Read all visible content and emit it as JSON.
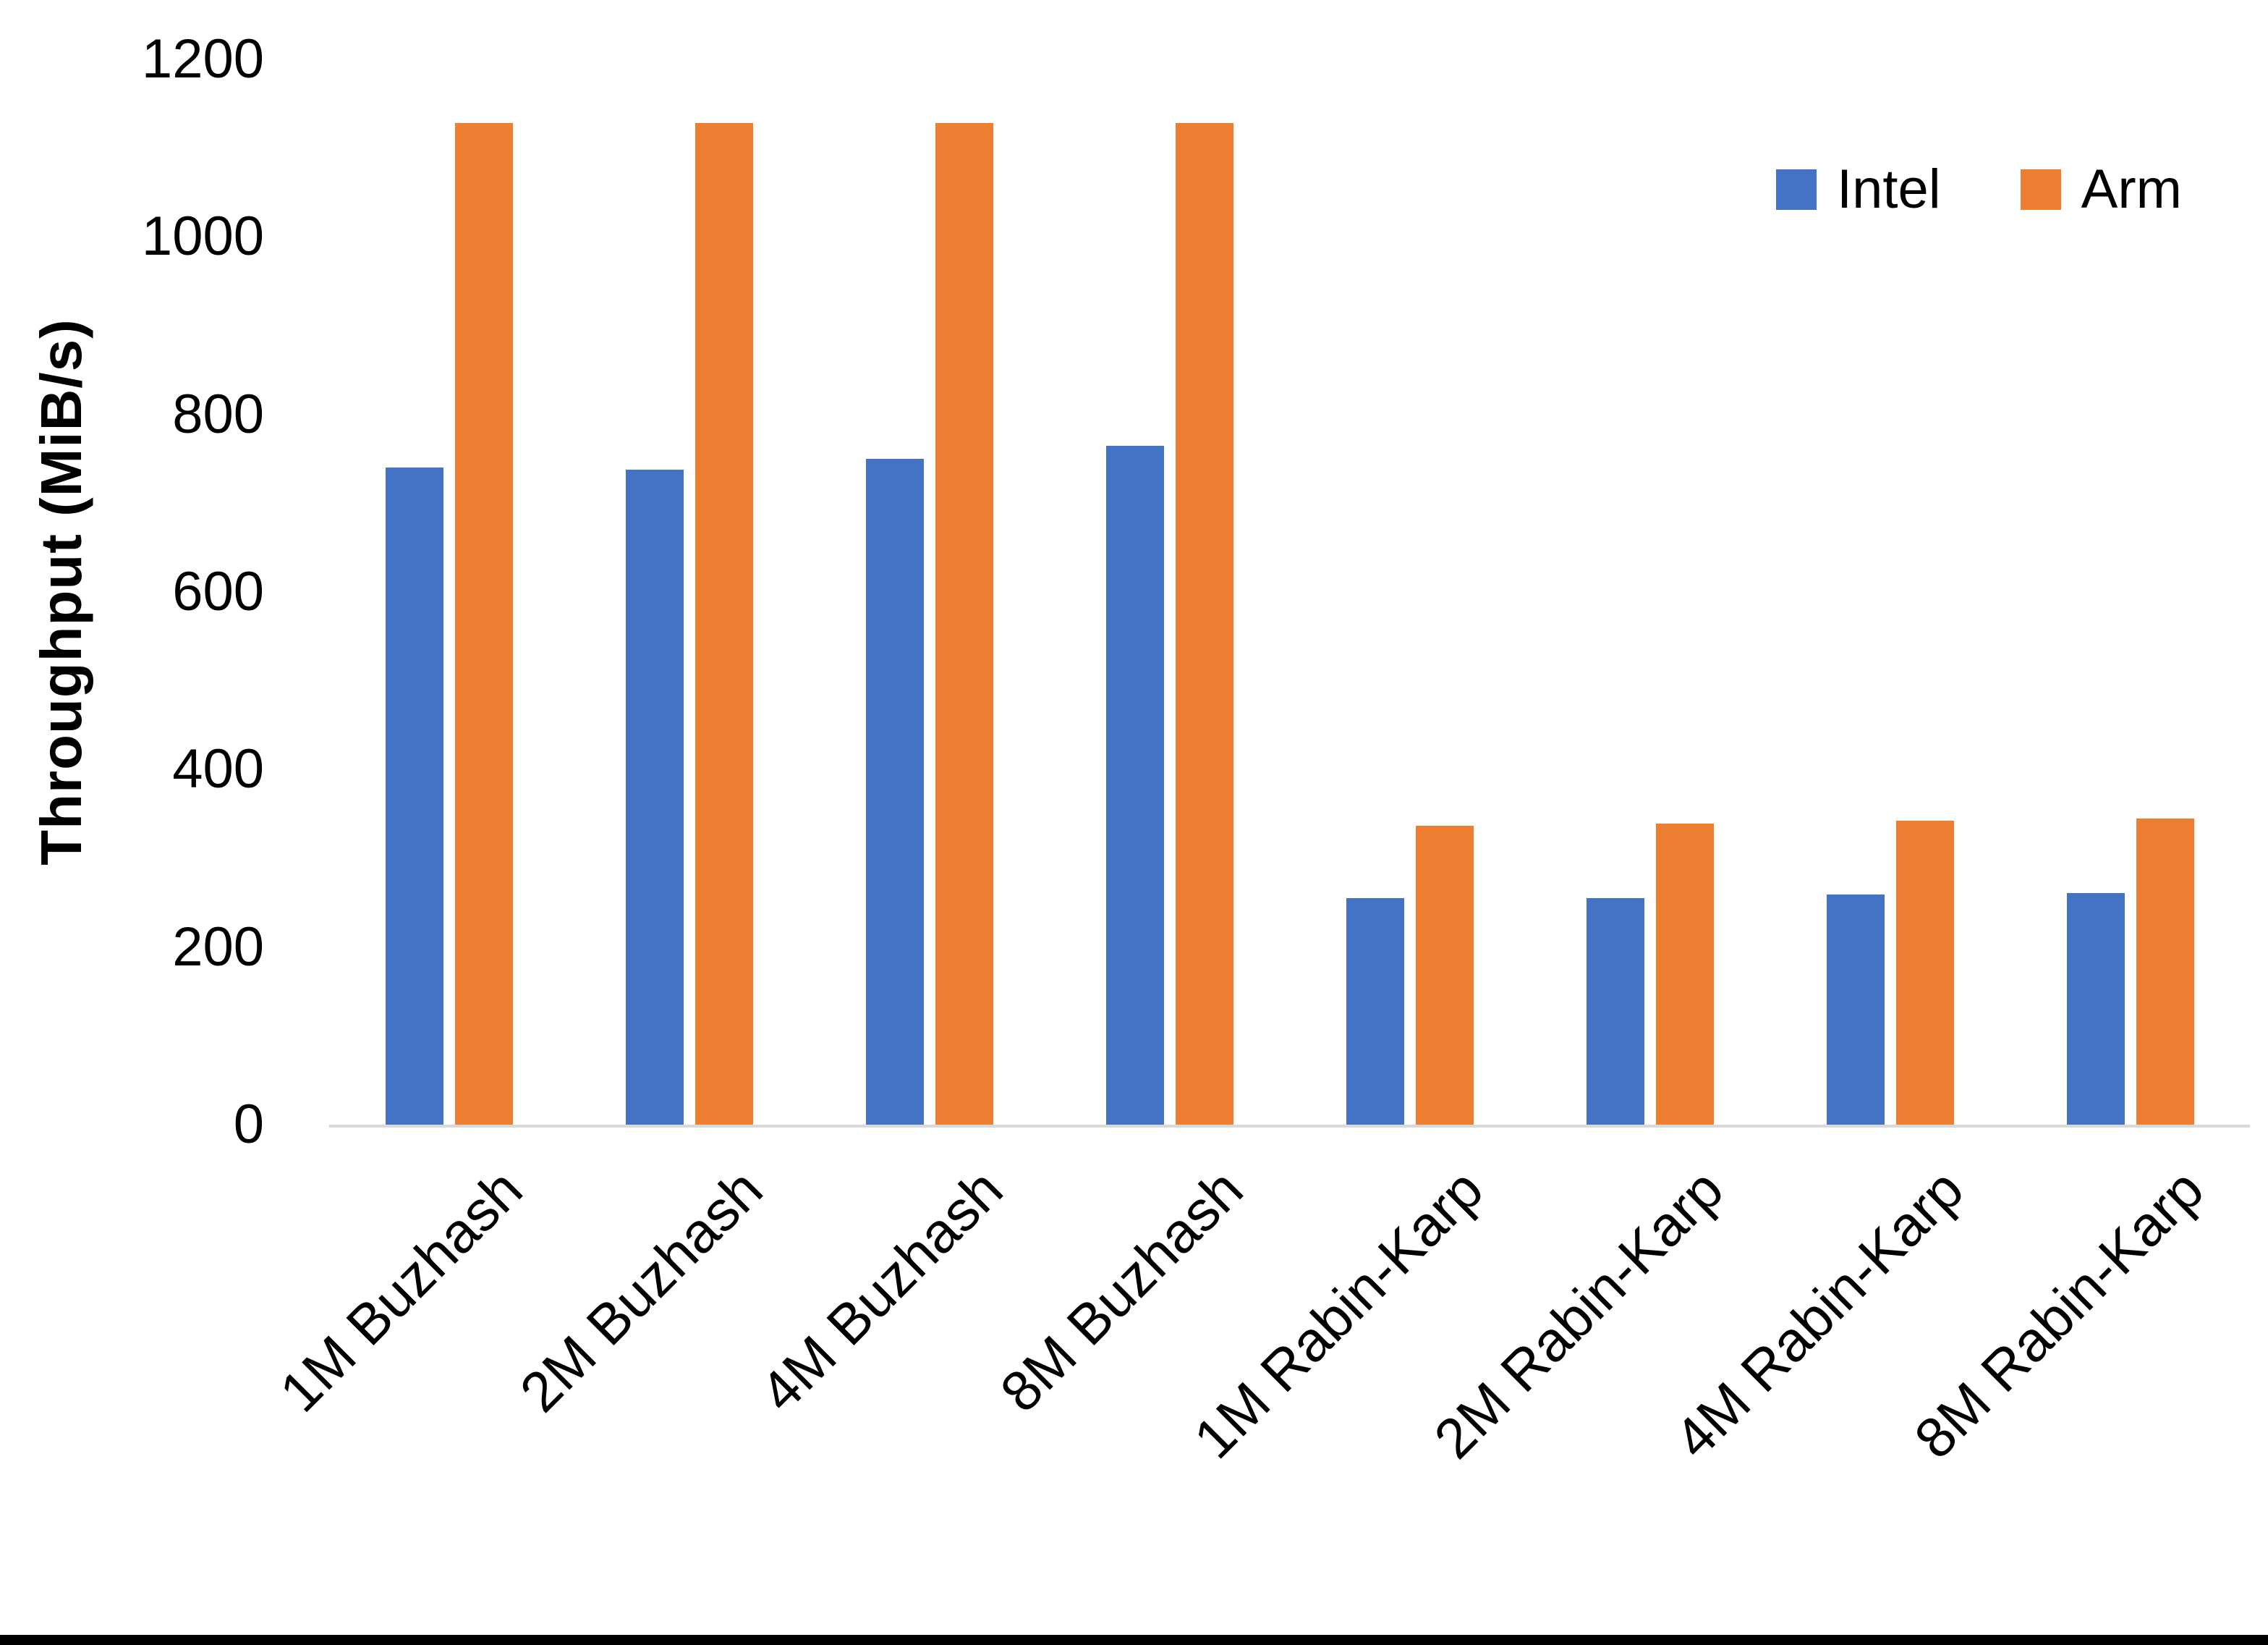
{
  "chart_data": {
    "type": "bar",
    "title": "",
    "ylabel": "Throughput (MiB/s)",
    "xlabel": "",
    "categories": [
      "1M Buzhash",
      "2M Buzhash",
      "4M Buzhash",
      "8M Buzhash",
      "1M Rabin-Karp",
      "2M Rabin-Karp",
      "4M Rabin-Karp",
      "8M Rabin-Karp"
    ],
    "series": [
      {
        "name": "Intel",
        "color": "#4472C4",
        "values": [
          740,
          738,
          750,
          765,
          255,
          255,
          259,
          261
        ]
      },
      {
        "name": "Arm",
        "color": "#ED7D31",
        "values": [
          1128,
          1128,
          1128,
          1128,
          337,
          339,
          342,
          345
        ]
      }
    ],
    "ylim": [
      0,
      1200
    ],
    "yticks": [
      0,
      200,
      400,
      600,
      800,
      1000,
      1200
    ],
    "grid": false,
    "legend_position": "top-right",
    "axis_line_color": "#D9D9D9",
    "text_color": "#000000",
    "background_color": "#FFFFFF"
  }
}
